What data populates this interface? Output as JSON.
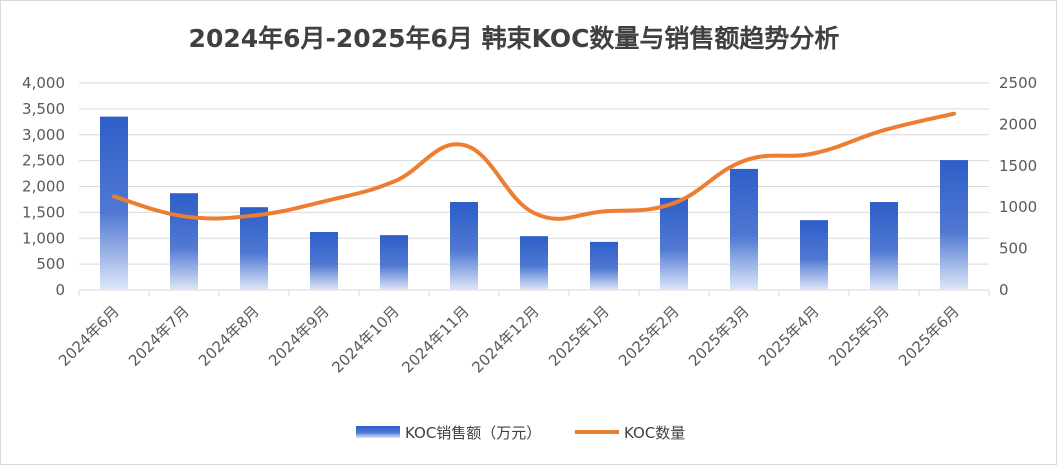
{
  "chart_data": {
    "type": "bar+line",
    "title": "2024年6月-2025年6月 韩束KOC数量与销售额趋势分析",
    "categories": [
      "2024年6月",
      "2024年7月",
      "2024年8月",
      "2024年9月",
      "2024年10月",
      "2024年11月",
      "2024年12月",
      "2025年1月",
      "2025年2月",
      "2025年3月",
      "2025年4月",
      "2025年5月",
      "2025年6月"
    ],
    "series": [
      {
        "name": "KOC销售额（万元）",
        "type": "bar",
        "axis": "left",
        "values": [
          3350,
          1870,
          1600,
          1120,
          1060,
          1700,
          1040,
          930,
          1780,
          2340,
          1350,
          1700,
          2510
        ]
      },
      {
        "name": "KOC数量",
        "type": "line",
        "axis": "right",
        "values": [
          1130,
          890,
          900,
          1070,
          1310,
          1750,
          930,
          950,
          1050,
          1560,
          1650,
          1930,
          2130
        ]
      }
    ],
    "y_left": {
      "min": 0,
      "max": 4000,
      "step": 500,
      "tick_labels": [
        "0",
        "500",
        "1,000",
        "1,500",
        "2,000",
        "2,500",
        "3,000",
        "3,500",
        "4,000"
      ]
    },
    "y_right": {
      "min": 0,
      "max": 2500,
      "step": 500,
      "tick_labels": [
        "0",
        "500",
        "1000",
        "1500",
        "2000",
        "2500"
      ]
    },
    "grid": true,
    "legend_position": "bottom",
    "colors": {
      "bar_top": "#2e5ec8",
      "bar_bottom": "#dfe7f8",
      "line": "#ed7d31",
      "grid": "#d9d9d9",
      "text": "#595959"
    }
  }
}
